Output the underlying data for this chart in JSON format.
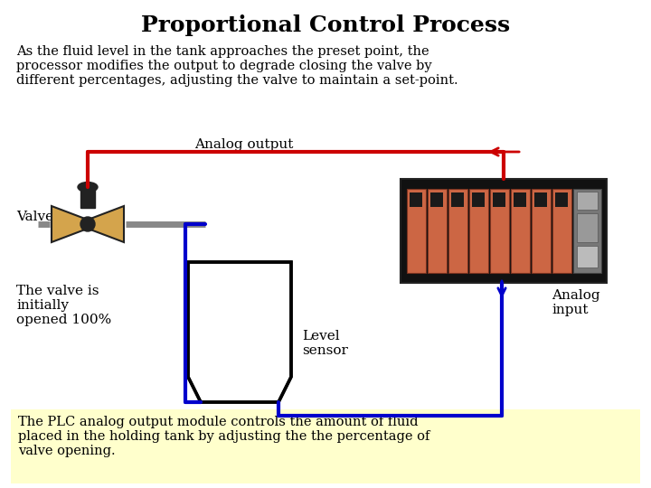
{
  "title": "Proportional Control Process",
  "subtitle": "As the fluid level in the tank approaches the preset point, the\nprocessor modifies the output to degrade closing the valve by\ndifferent percentages, adjusting the valve to maintain a set-point.",
  "label_valve": "Valve",
  "label_analog_output": "Analog output",
  "label_analog_input": "Analog\ninput",
  "label_level_sensor": "Level\nsensor",
  "label_valve_note": "The valve is\ninitially\nopened 100%",
  "footer_text": "The PLC analog output module controls the amount of fluid\nplaced in the holding tank by adjusting the the percentage of\nvalve opening.",
  "bg_color": "#ffffff",
  "footer_bg": "#ffffcc",
  "red_line_color": "#cc0000",
  "blue_line_color": "#0000cc",
  "tank_fluid_color": "#2d6e00",
  "tank_bg_color": "#ffffff",
  "plc_body_color": "#cc6644",
  "plc_bg_color": "#111111",
  "plc_gray_color": "#888888",
  "valve_body_color": "#d4a44c",
  "valve_dark_color": "#222222"
}
